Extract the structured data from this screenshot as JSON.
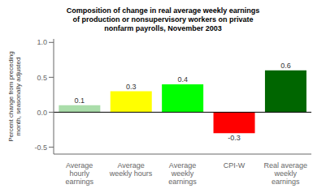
{
  "chart_data": {
    "type": "bar",
    "title": "Composition of change in real average weekly earnings\nof production or nonsupervisory workers on private\nnonfarm payrolls, November 2003",
    "ylabel": "Percent change from preceding\nmonth, seasonally adjusted",
    "categories": [
      "Average\nhourly\nearnings",
      "Average\nweekly hours",
      "Average\nweekly\nearnings",
      "CPI-W",
      "Real average\nweekly\nearnings"
    ],
    "values": [
      0.1,
      0.3,
      0.4,
      -0.3,
      0.6
    ],
    "colors": [
      "#aaddaa",
      "#ffff00",
      "#00ff00",
      "#ff0000",
      "#006600"
    ],
    "ylim": [
      -0.6,
      1.05
    ],
    "yticks": [
      -0.5,
      {
        "value": 0.0,
        "label": "0.0"
      },
      0.5,
      {
        "value": 1.0,
        "label": "1.0"
      }
    ],
    "grid": false,
    "data_labels": true
  }
}
